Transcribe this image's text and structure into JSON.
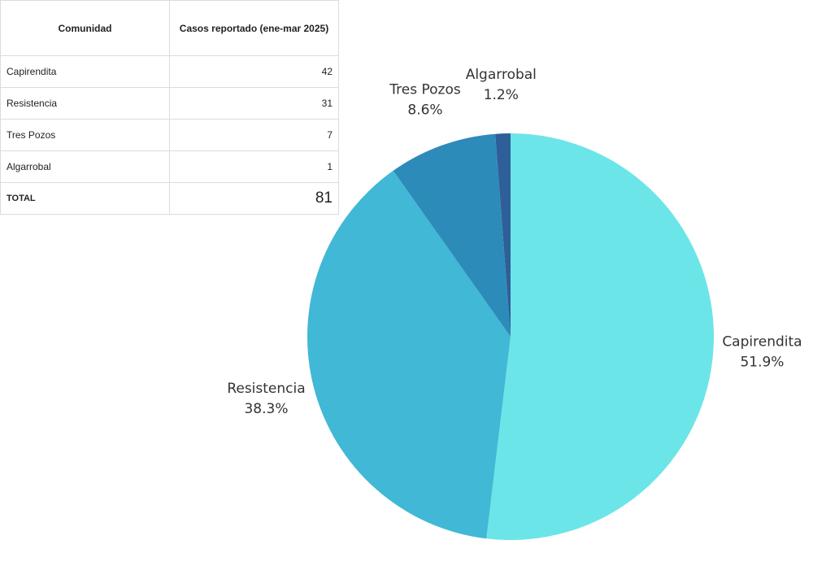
{
  "table": {
    "headers": [
      "Comunidad",
      "Casos reportado (ene-mar 2025)"
    ],
    "rows": [
      [
        "Capirendita",
        42
      ],
      [
        "Resistencia",
        31
      ],
      [
        "Tres Pozos",
        7
      ],
      [
        "Algarrobal",
        1
      ]
    ],
    "total": [
      "TOTAL",
      81
    ]
  },
  "chart_data": {
    "type": "pie",
    "categories": [
      "Capirendita",
      "Resistencia",
      "Tres Pozos",
      "Algarrobal"
    ],
    "values": [
      51.9,
      38.3,
      8.6,
      1.2
    ],
    "value_labels": [
      "51.9%",
      "38.3%",
      "8.6%",
      "1.2%"
    ],
    "colors": [
      "#6ce5e8",
      "#41b8d5",
      "#2d8bba",
      "#2f5f98"
    ]
  }
}
